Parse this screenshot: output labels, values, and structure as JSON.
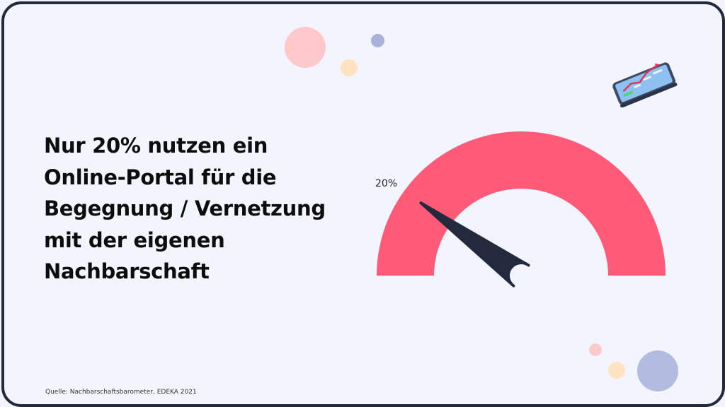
{
  "headline": "Nur 20% nutzen ein Online-Portal für die Begegnung / Vernetzung mit der eigenen Nachbarschaft",
  "source": "Quelle: Nachbarschaftsbarometer, EDEKA 2021",
  "colors": {
    "gauge_arc": "#ff5b78",
    "needle": "#232a3d",
    "border": "#232a3d",
    "background": "#f2f5fd"
  },
  "chart_data": {
    "type": "gauge",
    "value": 20,
    "min": 0,
    "max": 100,
    "unit": "%",
    "value_label": "20%"
  }
}
